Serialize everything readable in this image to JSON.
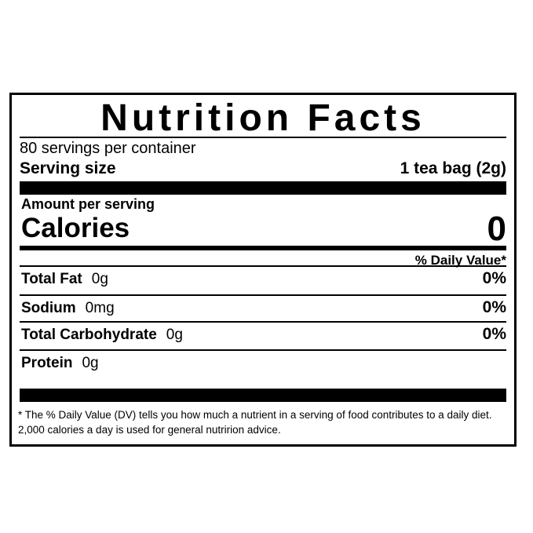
{
  "title": "Nutrition Facts",
  "servings": "80 servings per container",
  "serving_size": {
    "label": "Serving size",
    "value": "1 tea bag (2g)"
  },
  "amount_per_serving": "Amount per serving",
  "calories": {
    "label": "Calories",
    "value": "0"
  },
  "daily_value_header": "% Daily Value*",
  "nutrients": [
    {
      "name": "Total Fat",
      "amount": "0g",
      "dv": "0%"
    },
    {
      "name": "Sodium",
      "amount": "0mg",
      "dv": "0%"
    },
    {
      "name": "Total Carbohydrate",
      "amount": "0g",
      "dv": "0%"
    },
    {
      "name": "Protein",
      "amount": "0g"
    }
  ],
  "footnote": "* The % Daily Value (DV) tells you how much a nutrient in a serving of food contributes to a daily diet. 2,000 calories a day is used for general nutririon advice."
}
